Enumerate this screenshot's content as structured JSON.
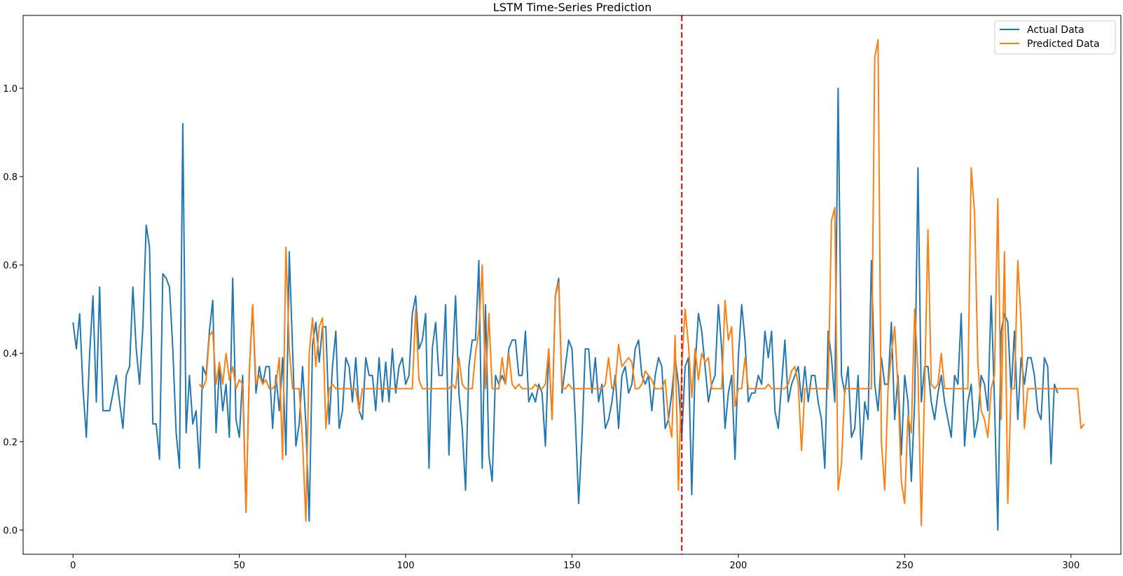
{
  "chart_data": {
    "type": "line",
    "title": "LSTM Time-Series Prediction",
    "xlabel": "",
    "ylabel": "",
    "xlim": [
      -15,
      315
    ],
    "ylim": [
      -0.055,
      1.165
    ],
    "x_ticks": [
      0,
      50,
      100,
      150,
      200,
      250,
      300
    ],
    "y_ticks": [
      0.0,
      0.2,
      0.4,
      0.6,
      0.8,
      1.0
    ],
    "x_tick_labels": [
      "0",
      "50",
      "100",
      "150",
      "200",
      "250",
      "300"
    ],
    "y_tick_labels": [
      "0.0",
      "0.2",
      "0.4",
      "0.6",
      "0.8",
      "1.0"
    ],
    "grid": false,
    "legend_position": "upper right",
    "split_line": {
      "x": 183,
      "color": "#e00000",
      "style": "dashed"
    },
    "series": [
      {
        "name": "Actual Data",
        "color": "#1f77b4",
        "x_start": 0,
        "values": [
          0.47,
          0.41,
          0.49,
          0.32,
          0.21,
          0.4,
          0.53,
          0.29,
          0.55,
          0.27,
          0.27,
          0.27,
          0.31,
          0.35,
          0.29,
          0.23,
          0.35,
          0.37,
          0.55,
          0.41,
          0.33,
          0.46,
          0.69,
          0.64,
          0.24,
          0.24,
          0.16,
          0.58,
          0.57,
          0.55,
          0.41,
          0.22,
          0.14,
          0.92,
          0.22,
          0.35,
          0.24,
          0.27,
          0.14,
          0.37,
          0.35,
          0.45,
          0.52,
          0.22,
          0.37,
          0.27,
          0.33,
          0.21,
          0.57,
          0.25,
          0.21,
          0.35,
          0.04,
          0.36,
          0.51,
          0.31,
          0.37,
          0.33,
          0.37,
          0.37,
          0.23,
          0.35,
          0.27,
          0.39,
          0.17,
          0.63,
          0.41,
          0.19,
          0.24,
          0.37,
          0.24,
          0.02,
          0.42,
          0.47,
          0.38,
          0.46,
          0.46,
          0.24,
          0.37,
          0.45,
          0.23,
          0.27,
          0.39,
          0.37,
          0.29,
          0.39,
          0.27,
          0.25,
          0.39,
          0.35,
          0.35,
          0.27,
          0.39,
          0.29,
          0.38,
          0.29,
          0.41,
          0.31,
          0.37,
          0.39,
          0.33,
          0.35,
          0.49,
          0.53,
          0.41,
          0.43,
          0.49,
          0.14,
          0.41,
          0.47,
          0.35,
          0.35,
          0.51,
          0.17,
          0.37,
          0.53,
          0.31,
          0.23,
          0.09,
          0.37,
          0.43,
          0.43,
          0.61,
          0.14,
          0.51,
          0.17,
          0.11,
          0.35,
          0.33,
          0.35,
          0.33,
          0.41,
          0.43,
          0.43,
          0.35,
          0.35,
          0.45,
          0.29,
          0.31,
          0.29,
          0.33,
          0.31,
          0.19,
          0.41,
          0.25,
          0.53,
          0.57,
          0.31,
          0.37,
          0.43,
          0.41,
          0.25,
          0.06,
          0.21,
          0.41,
          0.41,
          0.31,
          0.39,
          0.29,
          0.33,
          0.23,
          0.25,
          0.29,
          0.35,
          0.23,
          0.35,
          0.37,
          0.31,
          0.33,
          0.41,
          0.43,
          0.35,
          0.33,
          0.35,
          0.27,
          0.35,
          0.39,
          0.37,
          0.23,
          0.25,
          0.31,
          0.39,
          0.33,
          0.21,
          0.37,
          0.39,
          0.08,
          0.37,
          0.49,
          0.45,
          0.37,
          0.29,
          0.33,
          0.35,
          0.51,
          0.41,
          0.23,
          0.31,
          0.35,
          0.16,
          0.39,
          0.51,
          0.43,
          0.29,
          0.31,
          0.31,
          0.35,
          0.33,
          0.45,
          0.39,
          0.45,
          0.27,
          0.23,
          0.33,
          0.43,
          0.29,
          0.33,
          0.35,
          0.37,
          0.29,
          0.37,
          0.29,
          0.35,
          0.35,
          0.29,
          0.25,
          0.14,
          0.45,
          0.39,
          0.29,
          1.0,
          0.35,
          0.31,
          0.37,
          0.21,
          0.23,
          0.35,
          0.16,
          0.29,
          0.25,
          0.61,
          0.33,
          0.27,
          0.39,
          0.33,
          0.33,
          0.47,
          0.25,
          0.35,
          0.17,
          0.35,
          0.29,
          0.11,
          0.29,
          0.82,
          0.29,
          0.37,
          0.37,
          0.29,
          0.25,
          0.31,
          0.35,
          0.29,
          0.25,
          0.21,
          0.35,
          0.33,
          0.49,
          0.19,
          0.29,
          0.33,
          0.21,
          0.25,
          0.35,
          0.33,
          0.27,
          0.53,
          0.29,
          0.0,
          0.45,
          0.49,
          0.47,
          0.31,
          0.45,
          0.25,
          0.39,
          0.33,
          0.39,
          0.39,
          0.35,
          0.27,
          0.25,
          0.39,
          0.37,
          0.15,
          0.33,
          0.31
        ]
      },
      {
        "name": "Predicted Data",
        "color": "#ff7f0e",
        "x_start": 38,
        "values": [
          0.33,
          0.32,
          0.34,
          0.44,
          0.45,
          0.33,
          0.38,
          0.33,
          0.4,
          0.34,
          0.37,
          0.32,
          0.34,
          0.33,
          0.04,
          0.36,
          0.51,
          0.33,
          0.35,
          0.33,
          0.34,
          0.32,
          0.32,
          0.33,
          0.39,
          0.16,
          0.64,
          0.41,
          0.32,
          0.32,
          0.32,
          0.2,
          0.02,
          0.4,
          0.48,
          0.37,
          0.46,
          0.48,
          0.23,
          0.32,
          0.33,
          0.32,
          0.32,
          0.32,
          0.32,
          0.32,
          0.32,
          0.32,
          0.27,
          0.32,
          0.32,
          0.32,
          0.32,
          0.32,
          0.32,
          0.32,
          0.32,
          0.32,
          0.32,
          0.32,
          0.32,
          0.32,
          0.32,
          0.32,
          0.32,
          0.5,
          0.34,
          0.32,
          0.32,
          0.32,
          0.32,
          0.32,
          0.32,
          0.32,
          0.32,
          0.32,
          0.33,
          0.32,
          0.39,
          0.33,
          0.32,
          0.32,
          0.32,
          0.4,
          0.45,
          0.6,
          0.32,
          0.49,
          0.32,
          0.32,
          0.32,
          0.39,
          0.33,
          0.4,
          0.33,
          0.32,
          0.33,
          0.32,
          0.32,
          0.32,
          0.32,
          0.33,
          0.32,
          0.32,
          0.33,
          0.41,
          0.25,
          0.53,
          0.56,
          0.32,
          0.32,
          0.33,
          0.32,
          0.32,
          0.32,
          0.32,
          0.32,
          0.32,
          0.32,
          0.32,
          0.32,
          0.32,
          0.33,
          0.39,
          0.32,
          0.33,
          0.42,
          0.37,
          0.38,
          0.39,
          0.38,
          0.32,
          0.32,
          0.33,
          0.36,
          0.35,
          0.34,
          0.32,
          0.32,
          0.32,
          0.34,
          0.25,
          0.21,
          0.44,
          0.09,
          0.37,
          0.5,
          0.42,
          0.3,
          0.41,
          0.34,
          0.4,
          0.38,
          0.39,
          0.32,
          0.32,
          0.32,
          0.32,
          0.52,
          0.43,
          0.46,
          0.28,
          0.32,
          0.32,
          0.39,
          0.32,
          0.32,
          0.32,
          0.32,
          0.32,
          0.32,
          0.33,
          0.32,
          0.32,
          0.32,
          0.32,
          0.32,
          0.33,
          0.36,
          0.37,
          0.33,
          0.18,
          0.32,
          0.32,
          0.32,
          0.32,
          0.32,
          0.32,
          0.32,
          0.32,
          0.7,
          0.73,
          0.09,
          0.15,
          0.32,
          0.32,
          0.32,
          0.32,
          0.32,
          0.32,
          0.32,
          0.32,
          0.32,
          1.07,
          1.11,
          0.2,
          0.09,
          0.32,
          0.4,
          0.46,
          0.32,
          0.11,
          0.06,
          0.26,
          0.22,
          0.5,
          0.36,
          0.01,
          0.32,
          0.68,
          0.33,
          0.32,
          0.33,
          0.4,
          0.32,
          0.32,
          0.32,
          0.32,
          0.32,
          0.32,
          0.32,
          0.32,
          0.82,
          0.72,
          0.38,
          0.27,
          0.25,
          0.21,
          0.32,
          0.35,
          0.75,
          0.25,
          0.63,
          0.06,
          0.32,
          0.32,
          0.61,
          0.47,
          0.23,
          0.32,
          0.32,
          0.32,
          0.32,
          0.32,
          0.32,
          0.32,
          0.32,
          0.32,
          0.32,
          0.32,
          0.32,
          0.32,
          0.32,
          0.32,
          0.32,
          0.23,
          0.24
        ]
      }
    ]
  }
}
